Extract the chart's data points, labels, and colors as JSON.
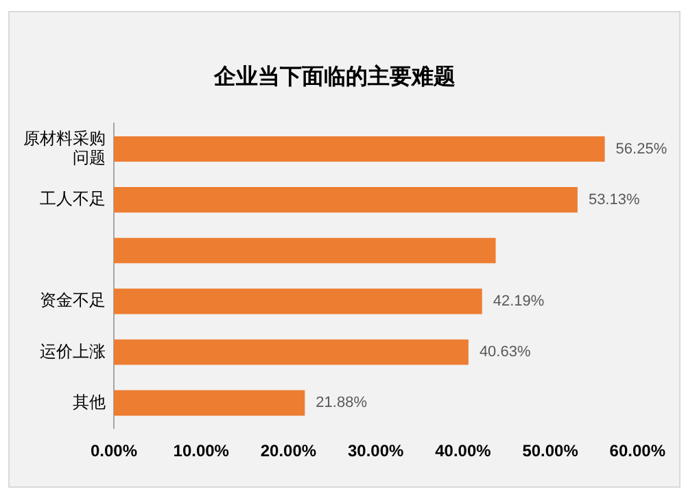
{
  "chart_data": {
    "type": "bar",
    "orientation": "horizontal",
    "title": "企业当下面临的主要难题",
    "categories": [
      "原材料采购问题",
      "工人不足",
      null,
      "资金不足",
      "运价上涨",
      "其他"
    ],
    "values": [
      56.25,
      53.13,
      43.75,
      42.19,
      40.63,
      21.88
    ],
    "value_labels": [
      "56.25%",
      "53.13%",
      null,
      "42.19%",
      "40.63%",
      "21.88%"
    ],
    "color": "#ed7d31",
    "xlim": [
      0,
      60
    ],
    "xticks": [
      {
        "value": 0,
        "label": "0.00%"
      },
      {
        "value": 10,
        "label": "10.00%"
      },
      {
        "value": 20,
        "label": "20.00%"
      },
      {
        "value": 30,
        "label": "30.00%"
      },
      {
        "value": 40,
        "label": "40.00%"
      },
      {
        "value": 50,
        "label": "50.00%"
      },
      {
        "value": 60,
        "label": "60.00%"
      }
    ],
    "grid": false,
    "legend": false
  }
}
